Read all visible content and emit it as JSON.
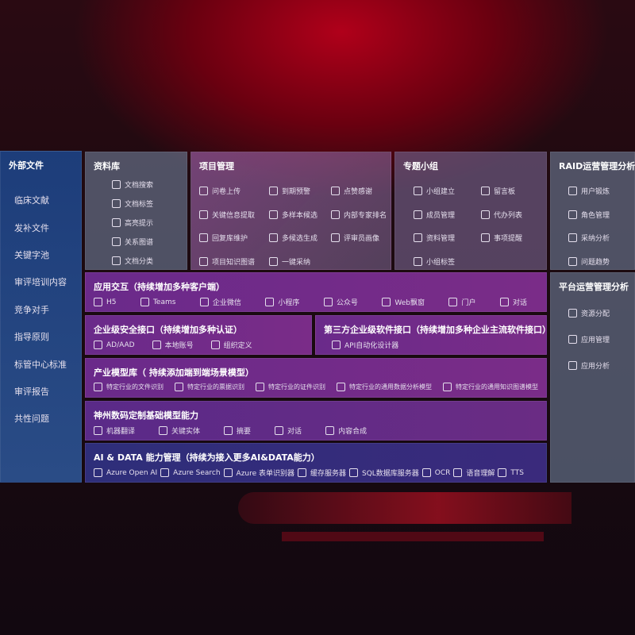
{
  "external": {
    "title": "外部文件",
    "items": [
      "临床文献",
      "发补文件",
      "关键字池",
      "审评培训内容",
      "竞争对手",
      "指导原则",
      "标管中心标准",
      "审评报告",
      "共性问题"
    ]
  },
  "library": {
    "title": "资料库",
    "items": [
      {
        "label": "文档搜索",
        "icon": "doc-search-icon"
      },
      {
        "label": "文档标签",
        "icon": "tag-icon"
      },
      {
        "label": "高亮提示",
        "icon": "pen-icon"
      },
      {
        "label": "关系图谱",
        "icon": "graph-icon"
      },
      {
        "label": "文档分类",
        "icon": "doc-list-icon"
      }
    ]
  },
  "project": {
    "title": "项目管理",
    "items": [
      {
        "label": "问卷上传",
        "icon": "cloud-upload-icon"
      },
      {
        "label": "关键信息提取",
        "icon": "window-icon"
      },
      {
        "label": "回复库维护",
        "icon": "pen-icon"
      },
      {
        "label": "项目知识图谱",
        "icon": "graph-icon"
      },
      {
        "label": "到期预警",
        "icon": "alarm-icon"
      },
      {
        "label": "多样本候选",
        "icon": "reply-all-icon"
      },
      {
        "label": "多候选生成",
        "icon": "puzzle-icon"
      },
      {
        "label": "一键采纳",
        "icon": "reply-icon"
      },
      {
        "label": "点赞感谢",
        "icon": "thumbs-up-icon"
      },
      {
        "label": "内部专家排名",
        "icon": "ranking-icon"
      },
      {
        "label": "评审员画像",
        "icon": "user-icon"
      }
    ]
  },
  "topic": {
    "title": "专题小组",
    "items": [
      {
        "label": "小组建立",
        "icon": "group-icon"
      },
      {
        "label": "成员管理",
        "icon": "user-add-icon"
      },
      {
        "label": "资料管理",
        "icon": "folder-icon"
      },
      {
        "label": "小组标签",
        "icon": "tag-icon"
      },
      {
        "label": "留言板",
        "icon": "bbs-icon"
      },
      {
        "label": "代办列表",
        "icon": "clipboard-icon"
      },
      {
        "label": "事项提醒",
        "icon": "bell-icon"
      }
    ]
  },
  "raid": {
    "title": "RAID运营管理分析",
    "items": [
      {
        "label": "用户锻炼",
        "icon": "id-card-icon"
      },
      {
        "label": "角色管理",
        "icon": "users-icon"
      },
      {
        "label": "采纳分析",
        "icon": "qa-icon"
      },
      {
        "label": "问题趋势",
        "icon": "trend-icon"
      }
    ]
  },
  "platform": {
    "title": "平台运营管理分析",
    "items": [
      {
        "label": "资源分配",
        "icon": "list-icon"
      },
      {
        "label": "应用管理",
        "icon": "apps-icon"
      },
      {
        "label": "应用分析",
        "icon": "chart-icon"
      }
    ]
  },
  "app": {
    "title": "应用交互（持续增加多种客户端）",
    "items": [
      {
        "label": "H5",
        "icon": "html5-icon"
      },
      {
        "label": "Teams",
        "icon": "teams-icon"
      },
      {
        "label": "企业微信",
        "icon": "wecom-icon"
      },
      {
        "label": "小程序",
        "icon": "miniprogram-icon"
      },
      {
        "label": "公众号",
        "icon": "official-account-icon"
      },
      {
        "label": "Web飘窗",
        "icon": "window-icon"
      },
      {
        "label": "门户",
        "icon": "portal-icon"
      },
      {
        "label": "对话",
        "icon": "chat-icon"
      }
    ]
  },
  "security": {
    "title": "企业级安全接口（持续增加多种认证）",
    "items": [
      {
        "label": "AD/AAD",
        "icon": "ad-icon"
      },
      {
        "label": "本地账号",
        "icon": "user-icon"
      },
      {
        "label": "组织定义",
        "icon": "org-icon"
      }
    ]
  },
  "thirdparty": {
    "title": "第三方企业级软件接口（持续增加多种企业主流软件接口）",
    "items": [
      {
        "label": "API自动化设计器",
        "icon": "api-gear-icon"
      }
    ]
  },
  "industry": {
    "title": "产业模型库（ 持续添加端到端场景模型）",
    "items": [
      {
        "label": "特定行业的文件识别",
        "icon": "file-icon"
      },
      {
        "label": "特定行业的票据识别",
        "icon": "receipt-icon"
      },
      {
        "label": "特定行业的证件识别",
        "icon": "id-card-icon"
      },
      {
        "label": "特定行业的通用数据分析模型",
        "icon": "data-icon"
      },
      {
        "label": "特定行业的通用知识图谱模型",
        "icon": "graph-icon"
      }
    ]
  },
  "base": {
    "title": "神州数码定制基础模型能力",
    "items": [
      {
        "label": "机器翻译",
        "icon": "translate-icon"
      },
      {
        "label": "关键实体",
        "icon": "entity-icon"
      },
      {
        "label": "摘要",
        "icon": "summary-icon"
      },
      {
        "label": "对话",
        "icon": "chat-icon"
      },
      {
        "label": "内容合成",
        "icon": "puzzle-icon"
      }
    ]
  },
  "aidata": {
    "title": "AI & DATA 能力管理（持续为接入更多AI&DATA能力）",
    "items": [
      {
        "label": "Azure Open AI",
        "icon": "openai-icon"
      },
      {
        "label": "Azure Search",
        "icon": "search-icon"
      },
      {
        "label": "Azure 表单识别器",
        "icon": "form-icon"
      },
      {
        "label": "缓存服务器",
        "icon": "cache-icon"
      },
      {
        "label": "SQL数据库服务器",
        "icon": "database-icon"
      },
      {
        "label": "OCR",
        "icon": "ocr-icon"
      },
      {
        "label": "语音理解",
        "icon": "speech-icon"
      },
      {
        "label": "TTS",
        "icon": "tts-icon"
      }
    ]
  }
}
